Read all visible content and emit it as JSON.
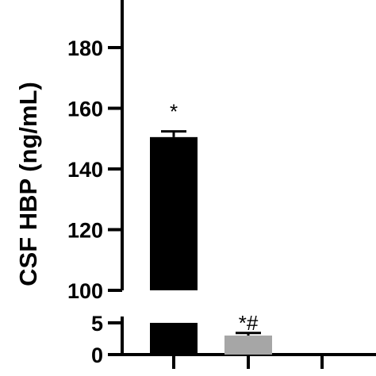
{
  "chart_data": {
    "type": "bar",
    "ylabel": "CSF HBP (ng/mL)",
    "y_axis_break": true,
    "lower_ylim": [
      0,
      5
    ],
    "upper_ylim": [
      100,
      190
    ],
    "lower_ticks": [
      0,
      5
    ],
    "upper_ticks": [
      100,
      120,
      140,
      160,
      180
    ],
    "categories": [
      "",
      "",
      ""
    ],
    "values": [
      150.5,
      3.0,
      0.2
    ],
    "error_upper": [
      152.4,
      3.4,
      null
    ],
    "bar_colors": [
      "#000000",
      "#a6a6a6",
      "#000000"
    ],
    "annotations": [
      "*",
      "*#",
      ""
    ]
  }
}
